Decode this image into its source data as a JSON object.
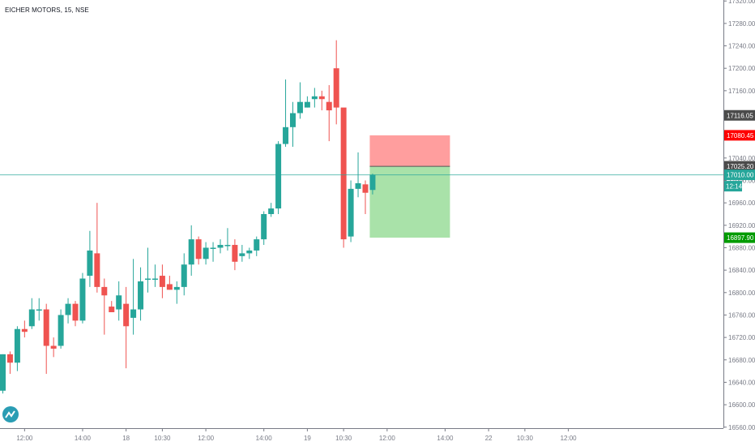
{
  "header": {
    "title": "EICHER MOTORS, 15, NSE"
  },
  "logo": {
    "icon": "tradingview-logo-icon"
  },
  "chart_data": {
    "type": "candlestick",
    "title": "EICHER MOTORS, 15, NSE",
    "ylim": [
      16560,
      17320
    ],
    "y_ticks": [
      16560,
      16600,
      16640,
      16680,
      16720,
      16760,
      16800,
      16840,
      16880,
      16920,
      16960,
      17000,
      17040,
      17080,
      17120,
      17160,
      17200,
      17240,
      17280,
      17320
    ],
    "y_tick_labels": [
      "16560.00",
      "16600.00",
      "16640.00",
      "16680.00",
      "16720.00",
      "16760.00",
      "16800.00",
      "16840.00",
      "16880.00",
      "16920.00",
      "16960.00",
      "17000.00",
      "17040.00",
      "17080.00",
      "17120.00",
      "17160.00",
      "17200.00",
      "17240.00",
      "17280.00",
      "17320.00"
    ],
    "x_tick_labels": [
      {
        "label": "12:00",
        "index": 3
      },
      {
        "label": "14:00",
        "index": 11
      },
      {
        "label": "18",
        "index": 17
      },
      {
        "label": "10:30",
        "index": 22
      },
      {
        "label": "12:00",
        "index": 28
      },
      {
        "label": "14:00",
        "index": 36
      },
      {
        "label": "19",
        "index": 42
      },
      {
        "label": "10:30",
        "index": 47
      },
      {
        "label": "12:00",
        "index": 53
      },
      {
        "label": "14:00",
        "index": 61
      },
      {
        "label": "22",
        "index": 67
      },
      {
        "label": "10:30",
        "index": 72
      },
      {
        "label": "12:00",
        "index": 78
      }
    ],
    "candles": [
      {
        "o": 16625,
        "h": 16690,
        "l": 16620,
        "c": 16690
      },
      {
        "o": 16690,
        "h": 16695,
        "l": 16655,
        "c": 16675
      },
      {
        "o": 16675,
        "h": 16740,
        "l": 16660,
        "c": 16735
      },
      {
        "o": 16735,
        "h": 16750,
        "l": 16720,
        "c": 16730
      },
      {
        "o": 16740,
        "h": 16790,
        "l": 16735,
        "c": 16770
      },
      {
        "o": 16770,
        "h": 16790,
        "l": 16750,
        "c": 16770
      },
      {
        "o": 16770,
        "h": 16780,
        "l": 16655,
        "c": 16705
      },
      {
        "o": 16705,
        "h": 16720,
        "l": 16685,
        "c": 16700
      },
      {
        "o": 16705,
        "h": 16770,
        "l": 16700,
        "c": 16760
      },
      {
        "o": 16760,
        "h": 16790,
        "l": 16745,
        "c": 16780
      },
      {
        "o": 16780,
        "h": 16785,
        "l": 16740,
        "c": 16750
      },
      {
        "o": 16750,
        "h": 16835,
        "l": 16745,
        "c": 16825
      },
      {
        "o": 16830,
        "h": 16910,
        "l": 16810,
        "c": 16875
      },
      {
        "o": 16870,
        "h": 16960,
        "l": 16800,
        "c": 16810
      },
      {
        "o": 16810,
        "h": 16825,
        "l": 16725,
        "c": 16795
      },
      {
        "o": 16775,
        "h": 16785,
        "l": 16765,
        "c": 16765
      },
      {
        "o": 16770,
        "h": 16820,
        "l": 16750,
        "c": 16795
      },
      {
        "o": 16780,
        "h": 16810,
        "l": 16665,
        "c": 16740
      },
      {
        "o": 16755,
        "h": 16860,
        "l": 16725,
        "c": 16770
      },
      {
        "o": 16770,
        "h": 16845,
        "l": 16750,
        "c": 16820
      },
      {
        "o": 16825,
        "h": 16880,
        "l": 16800,
        "c": 16825
      },
      {
        "o": 16825,
        "h": 16850,
        "l": 16810,
        "c": 16825
      },
      {
        "o": 16830,
        "h": 16850,
        "l": 16790,
        "c": 16810
      },
      {
        "o": 16815,
        "h": 16830,
        "l": 16805,
        "c": 16805
      },
      {
        "o": 16805,
        "h": 16820,
        "l": 16780,
        "c": 16810
      },
      {
        "o": 16810,
        "h": 16870,
        "l": 16795,
        "c": 16850
      },
      {
        "o": 16850,
        "h": 16920,
        "l": 16830,
        "c": 16895
      },
      {
        "o": 16895,
        "h": 16900,
        "l": 16850,
        "c": 16860
      },
      {
        "o": 16860,
        "h": 16890,
        "l": 16850,
        "c": 16880
      },
      {
        "o": 16880,
        "h": 16890,
        "l": 16855,
        "c": 16880
      },
      {
        "o": 16880,
        "h": 16895,
        "l": 16870,
        "c": 16885
      },
      {
        "o": 16885,
        "h": 16915,
        "l": 16875,
        "c": 16885
      },
      {
        "o": 16885,
        "h": 16895,
        "l": 16840,
        "c": 16855
      },
      {
        "o": 16865,
        "h": 16885,
        "l": 16855,
        "c": 16870
      },
      {
        "o": 16870,
        "h": 16880,
        "l": 16860,
        "c": 16875
      },
      {
        "o": 16875,
        "h": 16900,
        "l": 16865,
        "c": 16895
      },
      {
        "o": 16895,
        "h": 16945,
        "l": 16885,
        "c": 16940
      },
      {
        "o": 16940,
        "h": 16960,
        "l": 16935,
        "c": 16950
      },
      {
        "o": 16950,
        "h": 17070,
        "l": 16940,
        "c": 17065
      },
      {
        "o": 17065,
        "h": 17180,
        "l": 17060,
        "c": 17095
      },
      {
        "o": 17095,
        "h": 17140,
        "l": 17060,
        "c": 17120
      },
      {
        "o": 17120,
        "h": 17175,
        "l": 17110,
        "c": 17140
      },
      {
        "o": 17130,
        "h": 17150,
        "l": 17130,
        "c": 17140
      },
      {
        "o": 17145,
        "h": 17165,
        "l": 17130,
        "c": 17150
      },
      {
        "o": 17150,
        "h": 17160,
        "l": 17125,
        "c": 17145
      },
      {
        "o": 17140,
        "h": 17170,
        "l": 17070,
        "c": 17125
      },
      {
        "o": 17200,
        "h": 17250,
        "l": 17100,
        "c": 17130
      },
      {
        "o": 17130,
        "h": 17125,
        "l": 16880,
        "c": 16895
      },
      {
        "o": 16900,
        "h": 17000,
        "l": 16890,
        "c": 16985
      },
      {
        "o": 16985,
        "h": 17050,
        "l": 16970,
        "c": 16995
      },
      {
        "o": 16993,
        "h": 17000,
        "l": 16940,
        "c": 16978
      },
      {
        "o": 16983,
        "h": 17012,
        "l": 16975,
        "c": 17010
      }
    ],
    "levels": {
      "current_price": {
        "value": 17010.0,
        "label": "17010.00",
        "countdown": "12:14",
        "color": "#26a69a"
      },
      "prev_label": {
        "value": 17116.05,
        "label": "17116.05",
        "color": "#4b4b4b"
      },
      "stop_loss": {
        "value": 17080.45,
        "label": "17080.45",
        "color": "#ff0000"
      },
      "entry": {
        "value": 17025.2,
        "label": "17025.20",
        "color": "#4b4b4b"
      },
      "target": {
        "value": 16897.9,
        "label": "16897.90",
        "color": "#009b00"
      }
    },
    "position_box": {
      "start_index": 51,
      "end_index": 61
    },
    "colors": {
      "up": "#26a69a",
      "down": "#ef5350",
      "stop_zone": "#ff9e9e",
      "target_zone": "#a9e2a9",
      "axis": "#787b86"
    }
  }
}
